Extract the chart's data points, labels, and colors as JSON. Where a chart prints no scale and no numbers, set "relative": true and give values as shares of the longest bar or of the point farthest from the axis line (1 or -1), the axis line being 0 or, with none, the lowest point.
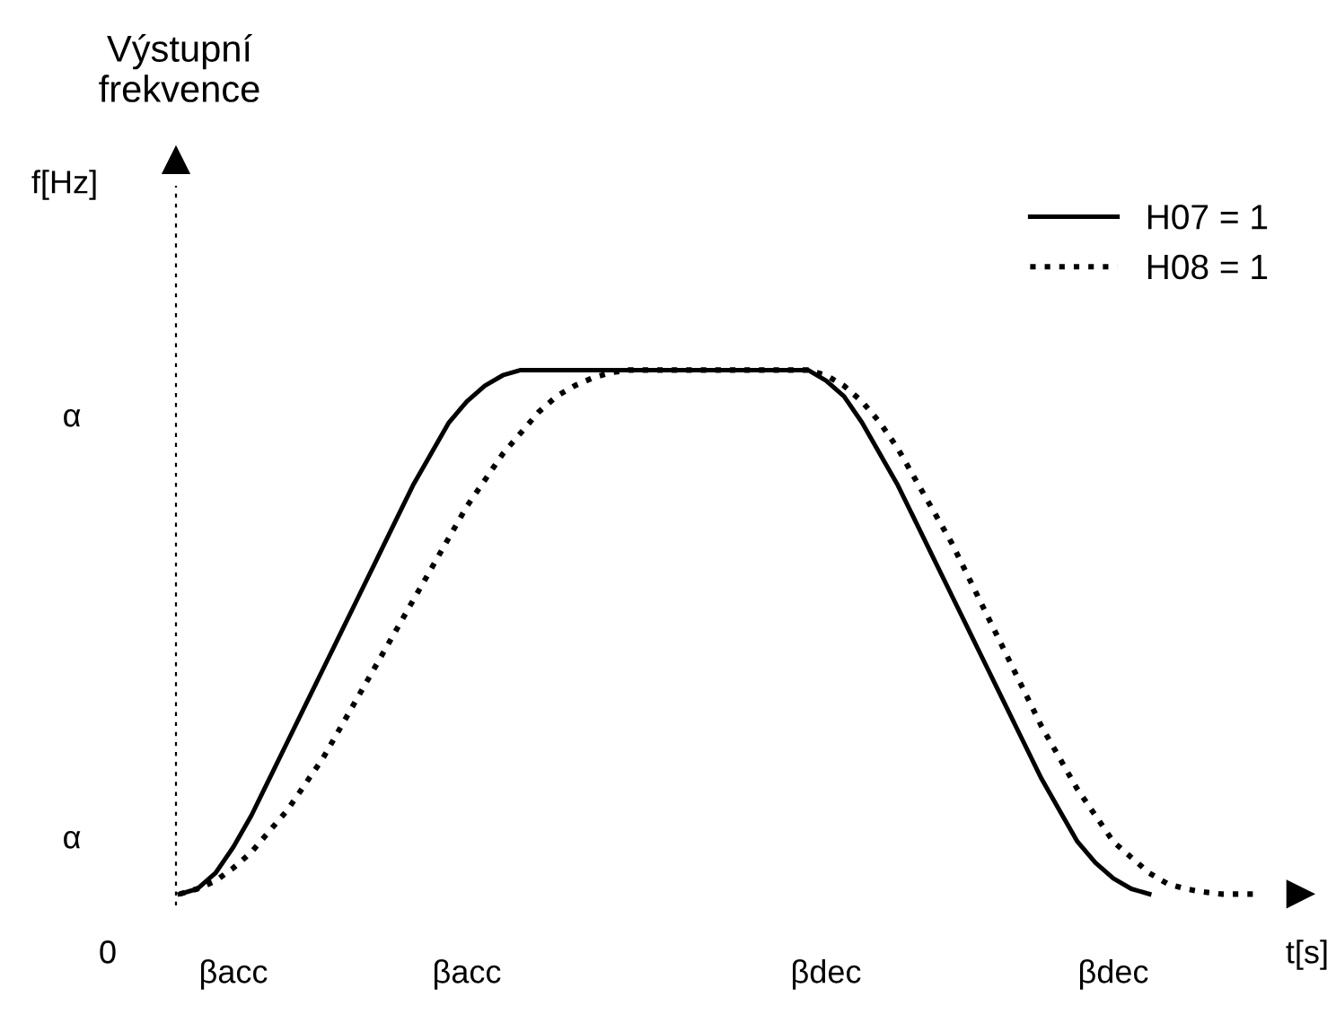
{
  "chart_data": {
    "type": "line",
    "relative": true,
    "title": "Výstupní\nfrekvence",
    "xlabel": "t[s]",
    "categories": [
      null,
      null,
      null,
      "βacc",
      null,
      null,
      null,
      null,
      null,
      null,
      null,
      null,
      null,
      null,
      null,
      null,
      "βacc",
      null,
      null,
      null,
      null,
      null,
      null,
      null,
      null,
      null,
      null,
      null,
      null,
      null,
      null,
      null,
      null,
      null,
      null,
      null,
      "βdec",
      null,
      null,
      null,
      null,
      null,
      null,
      null,
      null,
      null,
      null,
      null,
      null,
      null,
      null,
      null,
      "βdec",
      null,
      null,
      null,
      null,
      null,
      null,
      null,
      null
    ],
    "series": [
      {
        "name": "H07 = 1",
        "color": "#000000",
        "line_style": "solid",
        "values": [
          0,
          0.01,
          0.04,
          0.09,
          0.15,
          0.22,
          0.29,
          0.36,
          0.43,
          0.5,
          0.57,
          0.64,
          0.71,
          0.78,
          0.84,
          0.9,
          0.94,
          0.97,
          0.99,
          1,
          1,
          1,
          1,
          1,
          1,
          1,
          1,
          1,
          1,
          1,
          1,
          1,
          1,
          1,
          1,
          1,
          0.98,
          0.95,
          0.9,
          0.84,
          0.78,
          0.71,
          0.64,
          0.57,
          0.5,
          0.43,
          0.36,
          0.29,
          0.22,
          0.16,
          0.1,
          0.06,
          0.03,
          0.01,
          0,
          null,
          null,
          null,
          null,
          null,
          null
        ]
      },
      {
        "name": "H08 = 1",
        "color": "#000000",
        "line_style": "dotted",
        "values": [
          0,
          0.01,
          0.025,
          0.05,
          0.08,
          0.12,
          0.16,
          0.21,
          0.26,
          0.32,
          0.38,
          0.44,
          0.5,
          0.56,
          0.62,
          0.68,
          0.74,
          0.79,
          0.84,
          0.88,
          0.92,
          0.95,
          0.97,
          0.985,
          0.995,
          1,
          1,
          1,
          1,
          1,
          1,
          1,
          1,
          1,
          1,
          1,
          0.99,
          0.97,
          0.94,
          0.9,
          0.85,
          0.79,
          0.73,
          0.67,
          0.6,
          0.53,
          0.46,
          0.39,
          0.32,
          0.26,
          0.2,
          0.15,
          0.1,
          0.07,
          0.04,
          0.02,
          0.01,
          0.004,
          0,
          0,
          0
        ]
      }
    ],
    "annotations": [
      "f[Hz]",
      "α",
      "α",
      "0"
    ],
    "legend": "top right",
    "grid": false
  }
}
